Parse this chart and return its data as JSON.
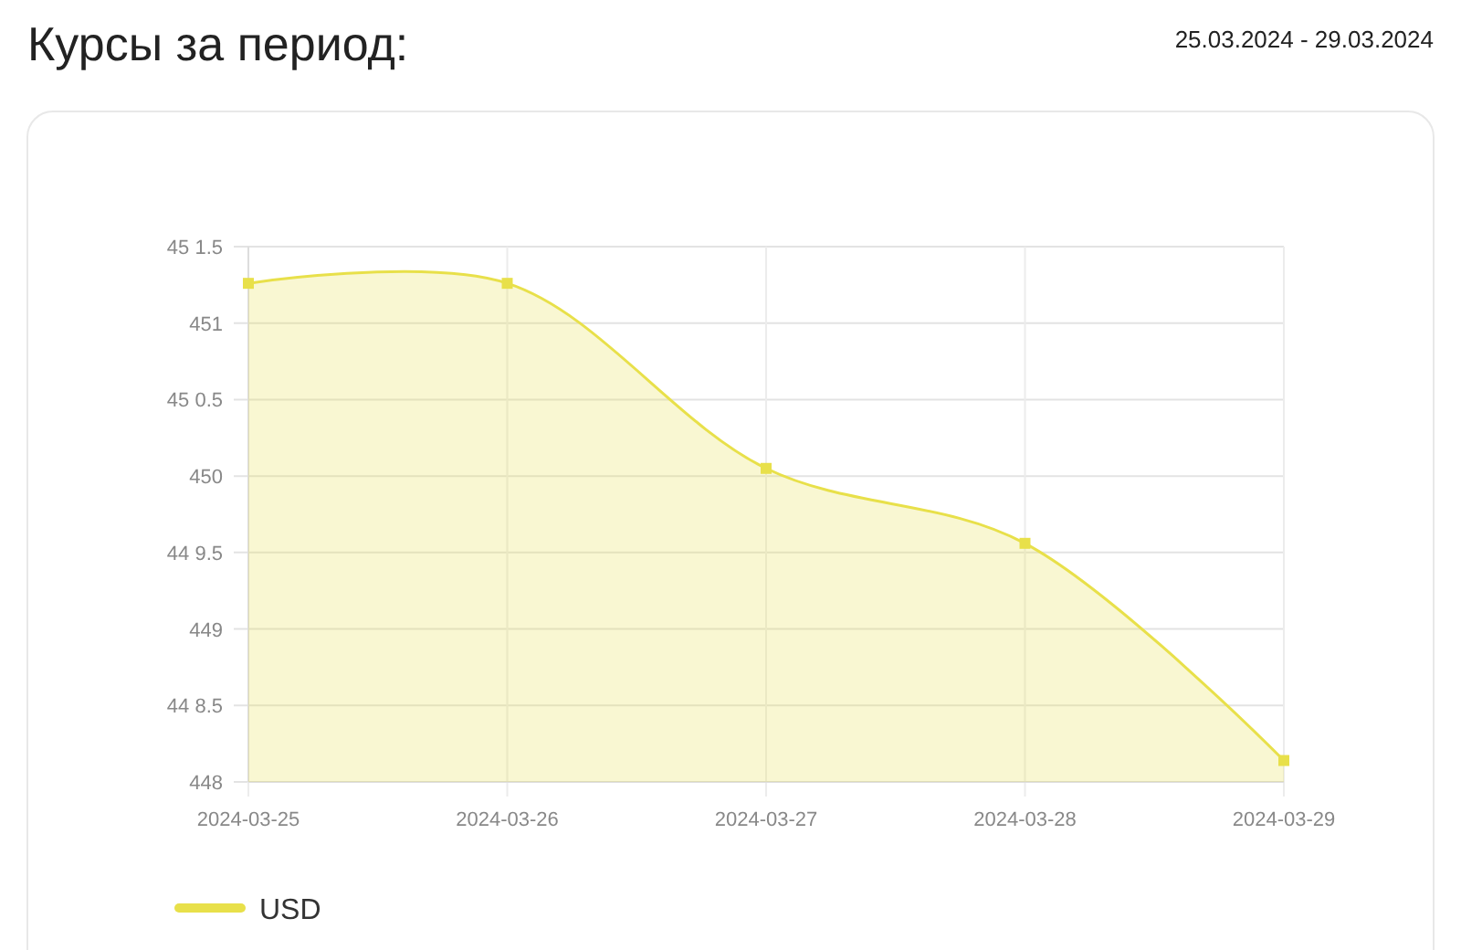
{
  "chart_data": {
    "type": "area",
    "title": "Курсы за период:",
    "subtitle": "25.03.2024 - 29.03.2024",
    "categories": [
      "2024-03-25",
      "2024-03-26",
      "2024-03-27",
      "2024-03-28",
      "2024-03-29"
    ],
    "series": [
      {
        "name": "USD",
        "color": "#e8e04a",
        "values": [
          451.26,
          451.26,
          450.05,
          449.56,
          448.14
        ]
      }
    ],
    "ylim": [
      448,
      451.5
    ],
    "yticks": [
      448,
      {
        "value": 448.5,
        "label": "44 8.5"
      },
      449,
      {
        "value": 449.5,
        "label": "44 9.5"
      },
      450,
      {
        "value": 450.5,
        "label": "45 0.5"
      },
      451,
      {
        "value": 451.5,
        "label": "45 1.5"
      }
    ],
    "grid": true,
    "legend": "bottom left",
    "marker": "square"
  }
}
